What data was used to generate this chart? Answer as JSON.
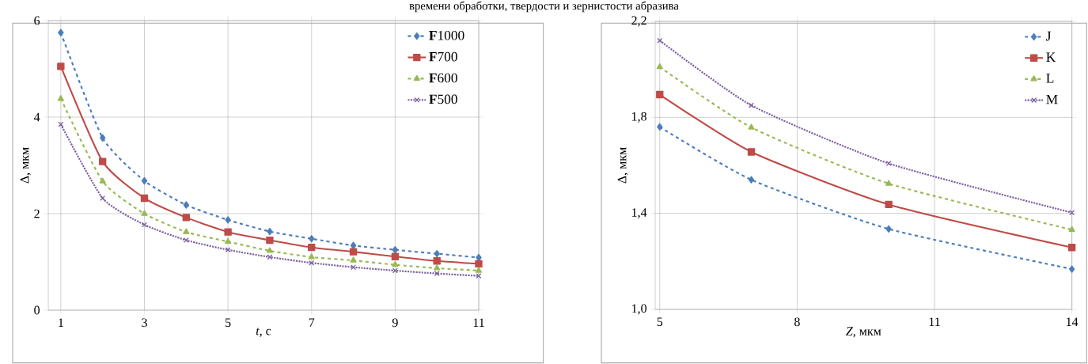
{
  "chart_data": [
    {
      "type": "line",
      "annotations": [
        "времени обработки, твердости и зернистости абразива"
      ],
      "xlabel": "*t*, с",
      "ylabel": "Δ, мкм",
      "x": [
        1,
        2,
        3,
        4,
        5,
        6,
        7,
        8,
        9,
        10,
        11
      ],
      "xlim": [
        0.7,
        11
      ],
      "ylim": [
        0,
        6
      ],
      "xticks": [
        1,
        3,
        5,
        7,
        9,
        11
      ],
      "yticks": [
        0,
        2,
        4,
        6
      ],
      "grid": true,
      "legend": "top right",
      "series": [
        {
          "name": "**F**1000",
          "color": "#4a7ebb",
          "marker": "diamond",
          "line_style": "dashed",
          "values": [
            5.75,
            3.57,
            2.68,
            2.18,
            1.87,
            1.63,
            1.48,
            1.34,
            1.25,
            1.17,
            1.09
          ]
        },
        {
          "name": "**F**700",
          "color": "#be4b48",
          "marker": "square",
          "line_style": "solid",
          "values": [
            5.05,
            3.08,
            2.32,
            1.92,
            1.62,
            1.45,
            1.3,
            1.21,
            1.11,
            1.02,
            0.96
          ]
        },
        {
          "name": "**F**600",
          "color": "#98b954",
          "marker": "triangle",
          "line_style": "dashed",
          "values": [
            4.38,
            2.67,
            2.0,
            1.62,
            1.42,
            1.23,
            1.1,
            1.03,
            0.94,
            0.87,
            0.82
          ]
        },
        {
          "name": "**F**500",
          "color": "#7d60a0",
          "marker": "cross",
          "line_style": "dotted",
          "values": [
            3.85,
            2.32,
            1.77,
            1.45,
            1.25,
            1.1,
            0.98,
            0.89,
            0.82,
            0.76,
            0.71
          ]
        }
      ]
    },
    {
      "type": "line",
      "xlabel": "*Z*, мкм",
      "ylabel": "Δ, мкм",
      "x": [
        5,
        7,
        10,
        14
      ],
      "xlim": [
        4.9,
        14
      ],
      "ylim": [
        1.0,
        2.2
      ],
      "xticks": [
        5,
        8,
        11,
        14
      ],
      "yticks": [
        {
          "value": 1.0,
          "label": "1,0"
        },
        {
          "value": 1.4,
          "label": "1,4"
        },
        {
          "value": 1.8,
          "label": "1,8"
        },
        {
          "value": 2.2,
          "label": "2,2"
        }
      ],
      "grid": true,
      "legend": "top right",
      "series": [
        {
          "name": "J",
          "color": "#4a7ebb",
          "marker": "diamond",
          "line_style": "dashed",
          "values": [
            1.76,
            1.54,
            1.335,
            1.168
          ]
        },
        {
          "name": "K",
          "color": "#be4b48",
          "marker": "square",
          "line_style": "solid",
          "values": [
            1.895,
            1.656,
            1.437,
            1.258
          ]
        },
        {
          "name": "L",
          "color": "#98b954",
          "marker": "triangle",
          "line_style": "dashed",
          "values": [
            2.01,
            1.758,
            1.524,
            1.332
          ]
        },
        {
          "name": "M",
          "color": "#7d60a0",
          "marker": "cross",
          "line_style": "dotted",
          "values": [
            2.12,
            1.85,
            1.608,
            1.403
          ]
        }
      ]
    }
  ]
}
